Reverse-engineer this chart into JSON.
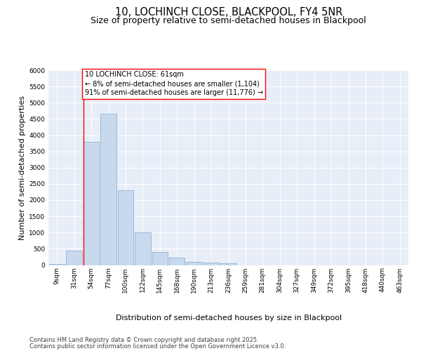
{
  "title_line1": "10, LOCHINCH CLOSE, BLACKPOOL, FY4 5NR",
  "title_line2": "Size of property relative to semi-detached houses in Blackpool",
  "xlabel": "Distribution of semi-detached houses by size in Blackpool",
  "ylabel": "Number of semi-detached properties",
  "categories": [
    "9sqm",
    "31sqm",
    "54sqm",
    "77sqm",
    "100sqm",
    "122sqm",
    "145sqm",
    "168sqm",
    "190sqm",
    "213sqm",
    "236sqm",
    "259sqm",
    "281sqm",
    "304sqm",
    "327sqm",
    "349sqm",
    "372sqm",
    "395sqm",
    "418sqm",
    "440sqm",
    "463sqm"
  ],
  "values": [
    40,
    450,
    3800,
    4650,
    2300,
    1000,
    400,
    230,
    90,
    70,
    50,
    0,
    0,
    0,
    0,
    0,
    0,
    0,
    0,
    0,
    0
  ],
  "bar_color": "#c9d9ed",
  "bar_edge_color": "#7fa8cc",
  "vline_color": "red",
  "annotation_title": "10 LOCHINCH CLOSE: 61sqm",
  "annotation_line2": "← 8% of semi-detached houses are smaller (1,104)",
  "annotation_line3": "91% of semi-detached houses are larger (11,776) →",
  "ylim": [
    0,
    6000
  ],
  "yticks": [
    0,
    500,
    1000,
    1500,
    2000,
    2500,
    3000,
    3500,
    4000,
    4500,
    5000,
    5500,
    6000
  ],
  "plot_bg_color": "#e8eef7",
  "footer_line1": "Contains HM Land Registry data © Crown copyright and database right 2025.",
  "footer_line2": "Contains public sector information licensed under the Open Government Licence v3.0.",
  "title_fontsize": 10.5,
  "subtitle_fontsize": 9,
  "axis_label_fontsize": 8,
  "tick_fontsize": 6.5,
  "annotation_fontsize": 7,
  "footer_fontsize": 6
}
